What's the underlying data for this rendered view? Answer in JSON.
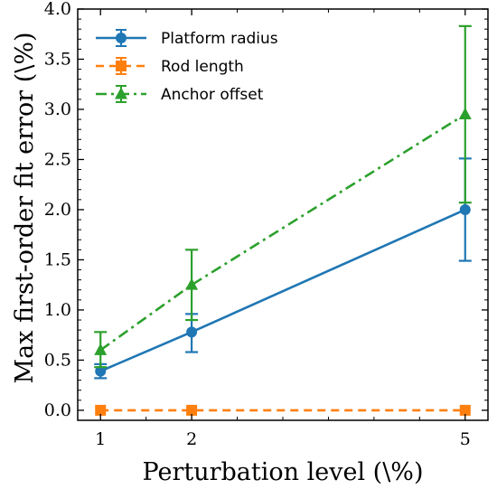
{
  "chart_data": {
    "type": "line",
    "xlabel": "Perturbation level (\\%)",
    "ylabel": "Max first-order fit error (\\%)",
    "x": [
      1,
      2,
      5
    ],
    "xlim": [
      0.75,
      5.25
    ],
    "ylim": [
      -0.1,
      4.0
    ],
    "xticks": [
      "1",
      "2",
      "5"
    ],
    "yticks": [
      "0.0",
      "0.5",
      "1.0",
      "1.5",
      "2.0",
      "2.5",
      "3.0",
      "3.5",
      "4.0"
    ],
    "legend_position": "top-left",
    "grid": false,
    "series": [
      {
        "name": "Platform radius",
        "color": "#1f77b4",
        "marker": "circle",
        "linestyle": "solid",
        "values": [
          0.39,
          0.78,
          2.0
        ],
        "err_low": [
          0.32,
          0.58,
          1.49
        ],
        "err_high": [
          0.46,
          0.96,
          2.51
        ]
      },
      {
        "name": "Rod length",
        "color": "#ff7f0e",
        "marker": "square",
        "linestyle": "dashed",
        "values": [
          0.0,
          0.0,
          0.0
        ],
        "err_low": [
          0.0,
          0.0,
          0.0
        ],
        "err_high": [
          0.0,
          0.0,
          0.0
        ]
      },
      {
        "name": "Anchor offset",
        "color": "#2ca02c",
        "marker": "triangle",
        "linestyle": "dashdot",
        "values": [
          0.6,
          1.25,
          2.95
        ],
        "err_low": [
          0.43,
          0.9,
          2.07
        ],
        "err_high": [
          0.78,
          1.6,
          3.83
        ]
      }
    ]
  }
}
